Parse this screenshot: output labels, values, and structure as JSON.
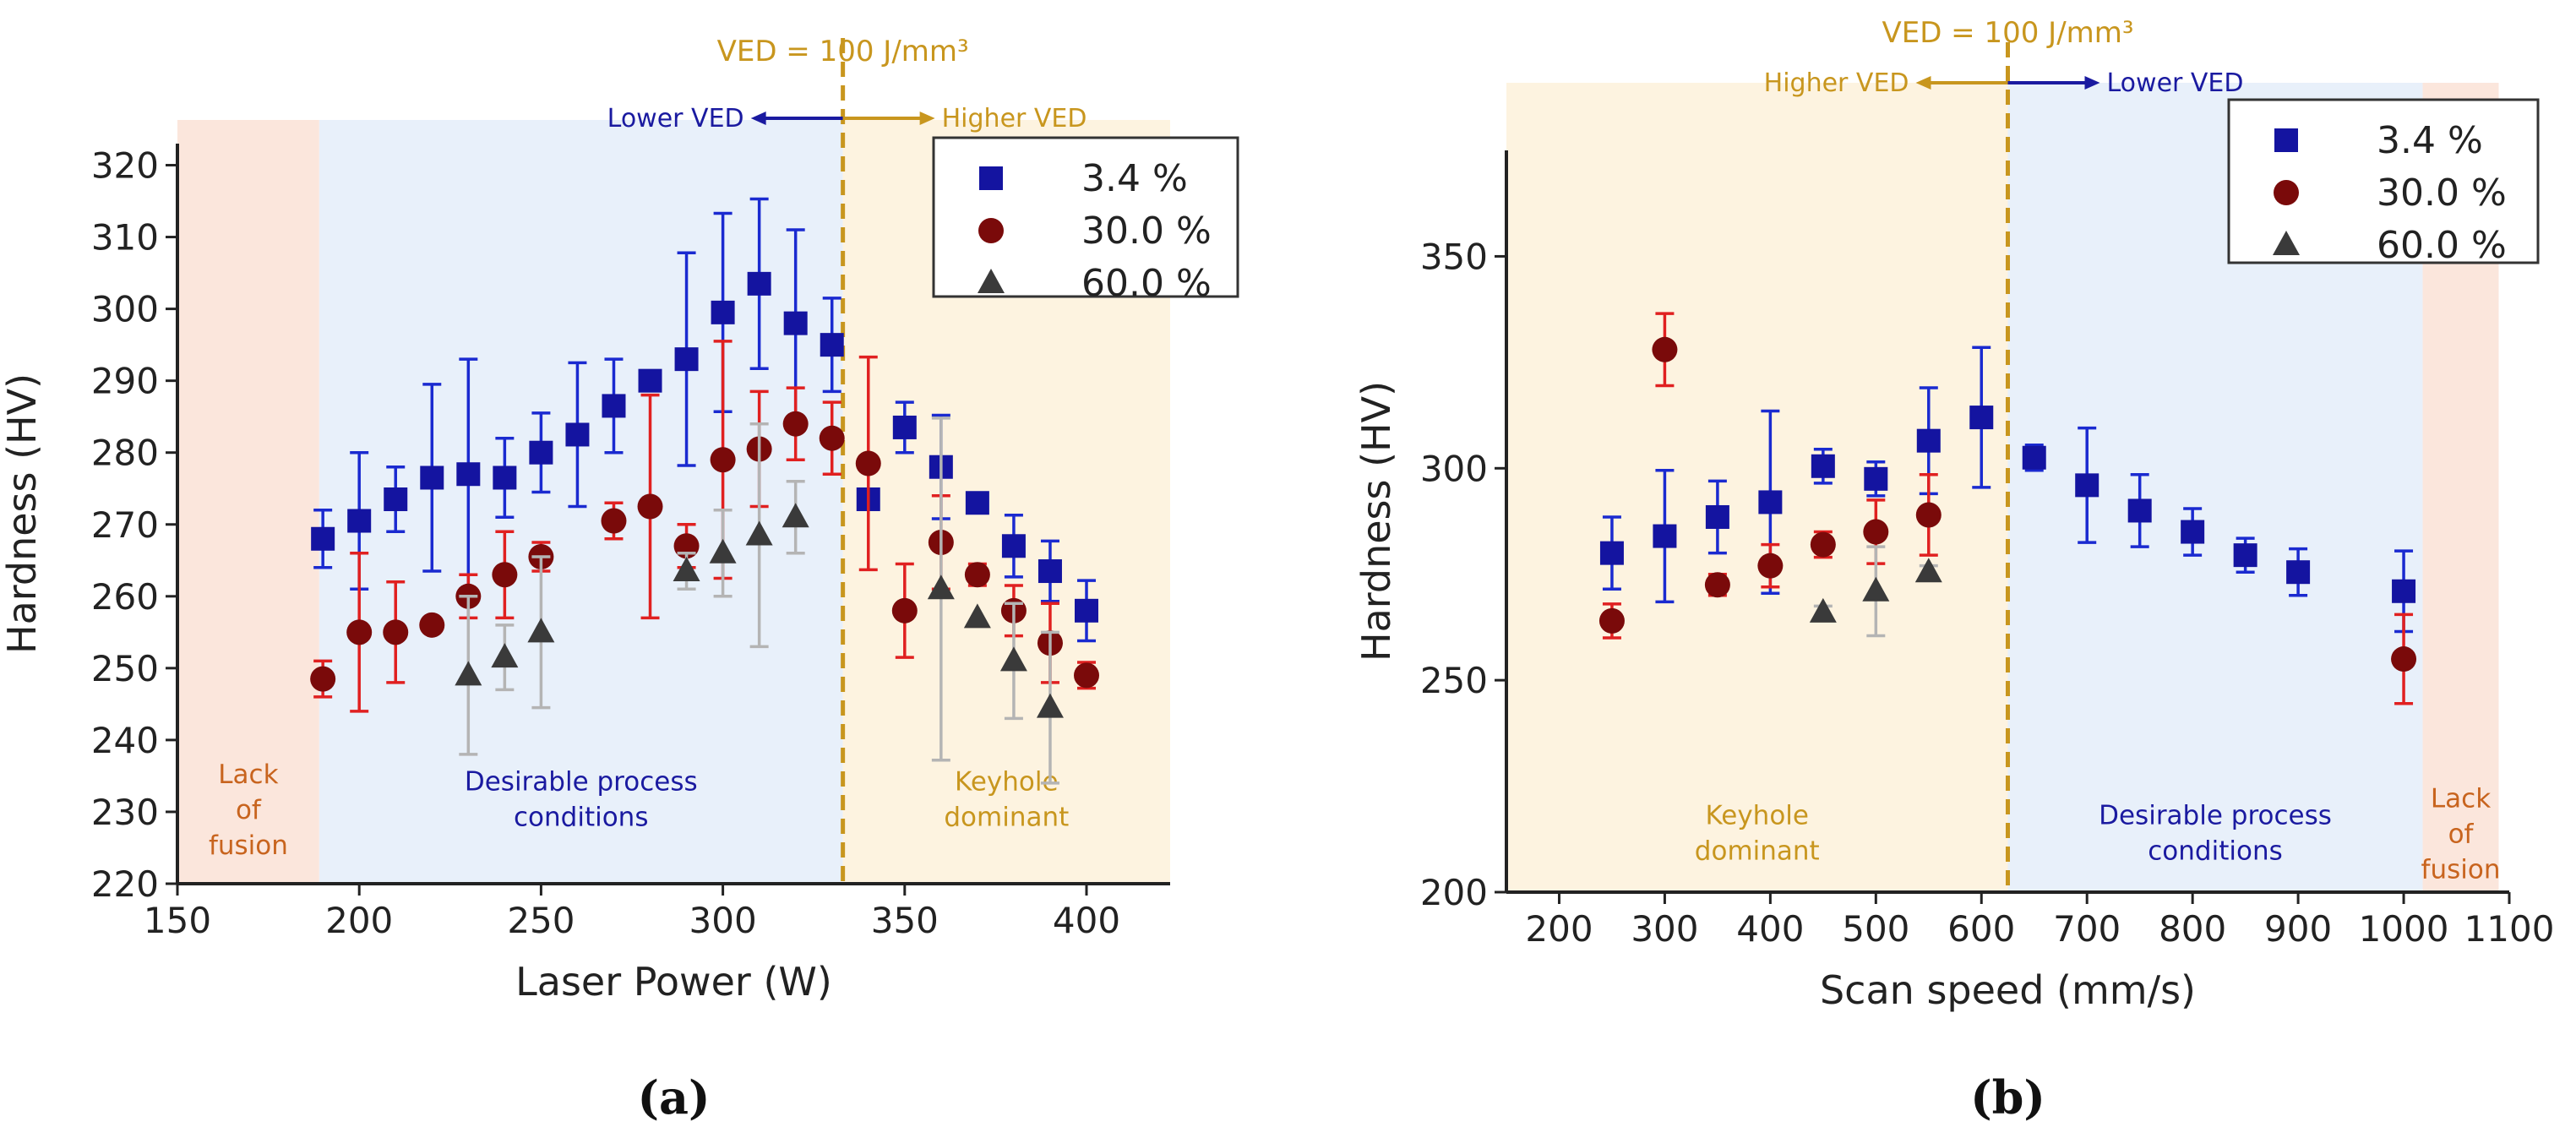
{
  "chart_data": [
    {
      "type": "scatter",
      "panel_label": "(a)",
      "xlabel": "Laser Power (W)",
      "ylabel": "Hardness (HV)",
      "xlim": [
        150,
        423
      ],
      "ylim": [
        220,
        323
      ],
      "xticks": [
        150,
        200,
        250,
        300,
        350,
        400
      ],
      "yticks": [
        220,
        230,
        240,
        250,
        260,
        270,
        280,
        290,
        300,
        310,
        320
      ],
      "ved_line": {
        "x": 333,
        "label": "VED = 100 J/mm³"
      },
      "arrows": {
        "left_text": "Lower VED",
        "right_text": "Higher VED",
        "left_color": "#1a1aa0",
        "right_color": "#c8961e"
      },
      "regions": [
        {
          "from": 150,
          "to": 189,
          "color": "#fbe6dc",
          "label_lines": [
            "Lack",
            "of",
            "fusion"
          ],
          "label_color": "#c8641e",
          "label_y": 234
        },
        {
          "from": 189,
          "to": 333,
          "color": "#e8f0fa",
          "label_lines": [
            "Desirable process",
            "conditions"
          ],
          "label_color": "#1a1aa0",
          "label_y": 233
        },
        {
          "from": 333,
          "to": 423,
          "color": "#fdf3e0",
          "label_lines": [
            "Keyhole",
            "dominant"
          ],
          "label_color": "#c8961e",
          "label_y": 233
        }
      ],
      "legend": {
        "position": "top-right"
      },
      "series": [
        {
          "name": "3.4 %",
          "marker": "square",
          "color": "#1414a0",
          "err_color": "#1a2ad0",
          "points": [
            {
              "x": 190,
              "y": 268,
              "e": 4
            },
            {
              "x": 200,
              "y": 270.5,
              "e": 9.5
            },
            {
              "x": 210,
              "y": 273.5,
              "e": 4.5
            },
            {
              "x": 220,
              "y": 276.5,
              "e": 13
            },
            {
              "x": 230,
              "y": 277,
              "e": 16
            },
            {
              "x": 240,
              "y": 276.5,
              "e": 5.5
            },
            {
              "x": 250,
              "y": 280,
              "e": 5.5
            },
            {
              "x": 260,
              "y": 282.5,
              "e": 10
            },
            {
              "x": 270,
              "y": 286.5,
              "e": 6.5
            },
            {
              "x": 280,
              "y": 290,
              "e": 1
            },
            {
              "x": 290,
              "y": 293,
              "e": 14.8
            },
            {
              "x": 300,
              "y": 299.5,
              "e": 13.8
            },
            {
              "x": 310,
              "y": 303.5,
              "e": 11.8
            },
            {
              "x": 320,
              "y": 298,
              "e": 13
            },
            {
              "x": 330,
              "y": 295,
              "e": 6.5
            },
            {
              "x": 340,
              "y": 273.5,
              "e": 0
            },
            {
              "x": 350,
              "y": 283.5,
              "e": 3.5
            },
            {
              "x": 360,
              "y": 278,
              "e": 7.2
            },
            {
              "x": 370,
              "y": 273,
              "e": 0.5
            },
            {
              "x": 380,
              "y": 267,
              "e": 4.3
            },
            {
              "x": 390,
              "y": 263.5,
              "e": 4.2
            },
            {
              "x": 400,
              "y": 258,
              "e": 4.2
            }
          ]
        },
        {
          "name": "30.0 %",
          "marker": "circle",
          "color": "#7a0a0a",
          "err_color": "#e02020",
          "points": [
            {
              "x": 190,
              "y": 248.5,
              "e": 2.5
            },
            {
              "x": 200,
              "y": 255,
              "e": 11
            },
            {
              "x": 210,
              "y": 255,
              "e": 7
            },
            {
              "x": 220,
              "y": 256,
              "e": 0
            },
            {
              "x": 230,
              "y": 260,
              "e": 3
            },
            {
              "x": 240,
              "y": 263,
              "e": 6
            },
            {
              "x": 250,
              "y": 265.5,
              "e": 2
            },
            {
              "x": 270,
              "y": 270.5,
              "e": 2.5
            },
            {
              "x": 280,
              "y": 272.5,
              "e": 15.5
            },
            {
              "x": 290,
              "y": 267,
              "e": 3
            },
            {
              "x": 300,
              "y": 279,
              "e": 16.5
            },
            {
              "x": 310,
              "y": 280.5,
              "e": 8
            },
            {
              "x": 320,
              "y": 284,
              "e": 5
            },
            {
              "x": 330,
              "y": 282,
              "e": 5
            },
            {
              "x": 340,
              "y": 278.5,
              "e": 14.8
            },
            {
              "x": 350,
              "y": 258,
              "e": 6.5
            },
            {
              "x": 360,
              "y": 267.5,
              "e": 6.5
            },
            {
              "x": 370,
              "y": 263,
              "e": 1.5
            },
            {
              "x": 380,
              "y": 258,
              "e": 3.5
            },
            {
              "x": 390,
              "y": 253.5,
              "e": 5.5
            },
            {
              "x": 400,
              "y": 249,
              "e": 1.8
            }
          ]
        },
        {
          "name": "60.0 %",
          "marker": "triangle",
          "color": "#3a3a3a",
          "err_color": "#b4b4b4",
          "points": [
            {
              "x": 230,
              "y": 249,
              "e": 11
            },
            {
              "x": 240,
              "y": 251.5,
              "e": 4.5
            },
            {
              "x": 250,
              "y": 255,
              "e": 10.5
            },
            {
              "x": 290,
              "y": 263.5,
              "e": 2.5
            },
            {
              "x": 300,
              "y": 266,
              "e": 6
            },
            {
              "x": 310,
              "y": 268.5,
              "e": 15.5
            },
            {
              "x": 320,
              "y": 271,
              "e": 5
            },
            {
              "x": 360,
              "y": 261,
              "e": 23.8
            },
            {
              "x": 370,
              "y": 257,
              "e": 0
            },
            {
              "x": 380,
              "y": 251,
              "e": 8
            },
            {
              "x": 390,
              "y": 244.5,
              "e": 10.5
            }
          ]
        }
      ]
    },
    {
      "type": "scatter",
      "panel_label": "(b)",
      "xlabel": "Scan speed (mm/s)",
      "ylabel": "Hardness (HV)",
      "xlim": [
        150,
        1100
      ],
      "ylim": [
        200,
        375
      ],
      "xticks": [
        200,
        300,
        400,
        500,
        600,
        700,
        800,
        900,
        1000,
        1100
      ],
      "xtick_labels": [
        "200",
        "300",
        "400",
        "500",
        "600",
        "700",
        "800",
        "900",
        "1000",
        "1100"
      ],
      "yticks": [
        200,
        250,
        300,
        350
      ],
      "ved_line": {
        "x": 625,
        "label": "VED = 100 J/mm³"
      },
      "arrows": {
        "left_text": "Higher VED",
        "right_text": "Lower VED",
        "left_color": "#c8961e",
        "right_color": "#1a1aa0"
      },
      "regions": [
        {
          "from": 150,
          "to": 625,
          "color": "#fdf3e0",
          "label_lines": [
            "Keyhole",
            "dominant"
          ],
          "label_color": "#c8961e",
          "label_y": 216
        },
        {
          "from": 625,
          "to": 1018,
          "color": "#e8f0fa",
          "label_lines": [
            "Desirable process",
            "conditions"
          ],
          "label_color": "#1a1aa0",
          "label_y": 216
        },
        {
          "from": 1018,
          "to": 1090,
          "color": "#fbe6dc",
          "label_lines": [
            "Lack",
            "of",
            "fusion"
          ],
          "label_color": "#c8641e",
          "label_y": 220
        }
      ],
      "legend": {
        "position": "top-right"
      },
      "series": [
        {
          "name": "3.4 %",
          "marker": "square",
          "color": "#1414a0",
          "err_color": "#1a2ad0",
          "points": [
            {
              "x": 250,
              "y": 280,
              "e": 8.5
            },
            {
              "x": 300,
              "y": 284,
              "e": 15.5
            },
            {
              "x": 350,
              "y": 288.5,
              "e": 8.5
            },
            {
              "x": 400,
              "y": 292,
              "e": 21.5
            },
            {
              "x": 450,
              "y": 300.5,
              "e": 4
            },
            {
              "x": 500,
              "y": 297.5,
              "e": 4
            },
            {
              "x": 550,
              "y": 306.5,
              "e": 12.5
            },
            {
              "x": 600,
              "y": 312,
              "e": 16.5
            },
            {
              "x": 650,
              "y": 302.5,
              "e": 3
            },
            {
              "x": 700,
              "y": 296,
              "e": 13.5
            },
            {
              "x": 750,
              "y": 290,
              "e": 8.5
            },
            {
              "x": 800,
              "y": 285,
              "e": 5.5
            },
            {
              "x": 850,
              "y": 279.5,
              "e": 4
            },
            {
              "x": 900,
              "y": 275.5,
              "e": 5.5
            },
            {
              "x": 1000,
              "y": 271,
              "e": 9.5
            }
          ]
        },
        {
          "name": "30.0 %",
          "marker": "circle",
          "color": "#7a0a0a",
          "err_color": "#e02020",
          "points": [
            {
              "x": 250,
              "y": 264,
              "e": 4
            },
            {
              "x": 300,
              "y": 328,
              "e": 8.5
            },
            {
              "x": 350,
              "y": 272.5,
              "e": 2.5
            },
            {
              "x": 400,
              "y": 277,
              "e": 5
            },
            {
              "x": 450,
              "y": 282,
              "e": 3
            },
            {
              "x": 500,
              "y": 285,
              "e": 7.5
            },
            {
              "x": 550,
              "y": 289,
              "e": 9.5
            },
            {
              "x": 1000,
              "y": 255,
              "e": 10.5
            }
          ]
        },
        {
          "name": "60.0 %",
          "marker": "triangle",
          "color": "#3a3a3a",
          "err_color": "#b4b4b4",
          "points": [
            {
              "x": 450,
              "y": 266,
              "e": 1.5
            },
            {
              "x": 500,
              "y": 271,
              "e": 10.5
            },
            {
              "x": 550,
              "y": 275.5,
              "e": 1.5
            }
          ]
        }
      ]
    }
  ]
}
